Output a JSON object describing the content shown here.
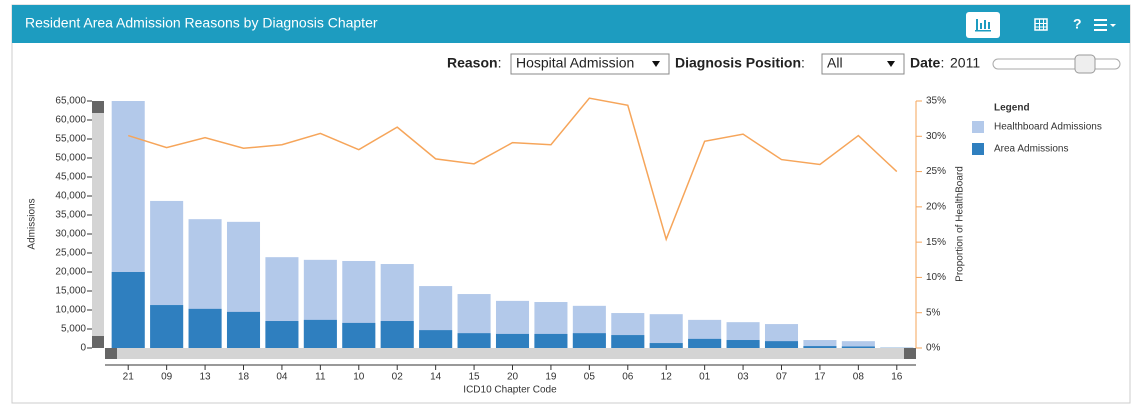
{
  "header": {
    "title": "Resident Area Admission Reasons by Diagnosis Chapter"
  },
  "controls": {
    "reason_label": "Reason",
    "reason_value": "Hospital Admission",
    "position_label": "Diagnosis Position",
    "position_value": "All",
    "date_label": "Date",
    "date_value": "2011"
  },
  "chart_data": {
    "type": "bar",
    "x_label": "ICD10 Chapter Code",
    "y_label": "Admissions",
    "y2_label": "Proportion of HealthBoard",
    "legend_title": "Legend",
    "categories": [
      "21",
      "09",
      "13",
      "18",
      "04",
      "11",
      "10",
      "02",
      "14",
      "15",
      "20",
      "19",
      "05",
      "06",
      "12",
      "01",
      "03",
      "07",
      "17",
      "08",
      "16"
    ],
    "series": [
      {
        "name": "Healthboard Admissions",
        "type": "bar",
        "color": "#b3c9ea",
        "values": [
          65000,
          38700,
          33900,
          33200,
          23900,
          23200,
          22900,
          22100,
          16300,
          14200,
          12400,
          12100,
          11100,
          9200,
          8900,
          7400,
          6800,
          6300,
          2100,
          1800,
          100
        ]
      },
      {
        "name": "Area Admissions",
        "type": "bar",
        "color": "#2f7fbf",
        "values": [
          20000,
          11300,
          10300,
          9500,
          7100,
          7400,
          6600,
          7100,
          4700,
          3900,
          3700,
          3700,
          3900,
          3400,
          1300,
          2400,
          2100,
          1800,
          500,
          400,
          50
        ]
      },
      {
        "type": "line",
        "axis": "y2",
        "color": "#f6a55a",
        "values": [
          30.1,
          28.4,
          29.8,
          28.3,
          28.8,
          30.4,
          28.1,
          31.3,
          26.8,
          26.1,
          29.1,
          28.8,
          35.4,
          34.4,
          15.4,
          29.3,
          30.3,
          26.7,
          26.0,
          30.1,
          25.0
        ]
      }
    ],
    "ylim": [
      0,
      65000
    ],
    "yticks": [
      0,
      {
        "value": 5000,
        "label": "5,000"
      },
      {
        "value": 10000,
        "label": "10,000"
      },
      {
        "value": 15000,
        "label": "15,000"
      },
      {
        "value": 20000,
        "label": "20,000"
      },
      {
        "value": 25000,
        "label": "25,000"
      },
      {
        "value": 30000,
        "label": "30,000"
      },
      {
        "value": 35000,
        "label": "35,000"
      },
      {
        "value": 40000,
        "label": "40,000"
      },
      {
        "value": 45000,
        "label": "45,000"
      },
      {
        "value": 50000,
        "label": "50,000"
      },
      {
        "value": 55000,
        "label": "55,000"
      },
      {
        "value": 60000,
        "label": "60,000"
      },
      {
        "value": 65000,
        "label": "65,000"
      }
    ],
    "y2lim": [
      0,
      35
    ],
    "y2ticks": [
      {
        "value": 0,
        "label": "0%"
      },
      {
        "value": 5,
        "label": "5%"
      },
      {
        "value": 10,
        "label": "10%"
      },
      {
        "value": 15,
        "label": "15%"
      },
      {
        "value": 20,
        "label": "20%"
      },
      {
        "value": 25,
        "label": "25%"
      },
      {
        "value": 30,
        "label": "30%"
      },
      {
        "value": 35,
        "label": "35%"
      }
    ],
    "legend_position": "upper right"
  }
}
